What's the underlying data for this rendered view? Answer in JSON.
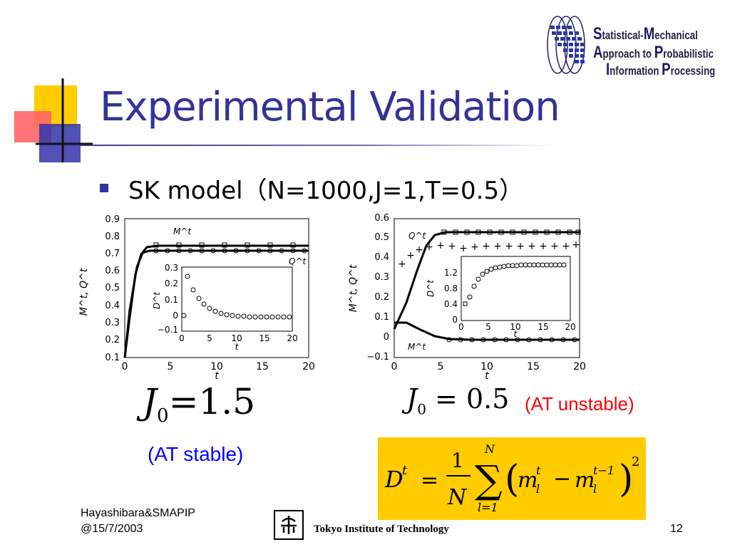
{
  "slide": {
    "title": "Experimental Validation",
    "bullet_text": "SK model（N=1000,J=1,T=0.5）",
    "page_number": "12"
  },
  "logo": {
    "line1_initial": "S",
    "line1_rest": "tatistical-",
    "line1_initial2": "M",
    "line1_rest2": "echanical",
    "line2_initial": "A",
    "line2_rest": "pproach to ",
    "line2_initial2": "P",
    "line2_rest2": "robabilistic",
    "line3_initial": "I",
    "line3_rest": "nformation ",
    "line3_initial2": "P",
    "line3_rest2": "rocessing"
  },
  "left_plot": {
    "equation": "J₀ = 1.5",
    "equation_symbol": "J",
    "equation_sub": "0",
    "equation_rhs": "=1.5",
    "caption": "(AT stable)",
    "y_label": "M^t, Q^t",
    "x_label": "t",
    "x_ticks": [
      "0",
      "5",
      "10",
      "15",
      "20"
    ],
    "y_ticks": [
      "0.1",
      "0.2",
      "0.3",
      "0.4",
      "0.5",
      "0.6",
      "0.7",
      "0.8",
      "0.9"
    ],
    "series_M_label": "M^t",
    "series_Q_label": "Q^t",
    "inset_y_label": "D^t",
    "inset_x_label": "t",
    "inset_x_ticks": [
      "0",
      "5",
      "10",
      "15",
      "20"
    ],
    "inset_y_ticks": [
      "−0.1",
      "0",
      "0.1",
      "0.2",
      "0.3"
    ]
  },
  "right_plot": {
    "equation_symbol": "J",
    "equation_sub": "0",
    "equation_rhs": " = 0.5",
    "caption": "(AT unstable)",
    "y_label": "M^t, Q^t",
    "x_label": "t",
    "x_ticks": [
      "0",
      "5",
      "10",
      "15",
      "20"
    ],
    "y_ticks": [
      "−0.1",
      "0",
      "0.1",
      "0.2",
      "0.3",
      "0.4",
      "0.5",
      "0.6"
    ],
    "series_Q_label": "Q^t",
    "series_M_label": "M^t",
    "inset_y_label": "D^t",
    "inset_x_label": "t",
    "inset_x_ticks": [
      "0",
      "5",
      "10",
      "15",
      "20"
    ],
    "inset_y_ticks": [
      "0",
      "0.4",
      "0.8",
      "1.2"
    ]
  },
  "formula": {
    "lhs": "D",
    "lhs_sup": "t",
    "eq": "=",
    "frac_num": "1",
    "frac_den": "N",
    "sum_top": "N",
    "sum_bottom": "l=1",
    "m1": "m",
    "m1_sup": "t",
    "m1_sub": "l",
    "minus": "−",
    "m2": "m",
    "m2_sup": "t−1",
    "m2_sub": "l",
    "power": "2"
  },
  "footer": {
    "author": "Hayashibara&SMAPIP",
    "date": "@15/7/2003",
    "institution": "Tokyo Institute of Technology"
  },
  "colors": {
    "title": "#333399",
    "bullet": "#333399",
    "caption_unstable": "#ff0000",
    "caption_stable": "#0000ff",
    "formula_background": "#ffcc00"
  }
}
